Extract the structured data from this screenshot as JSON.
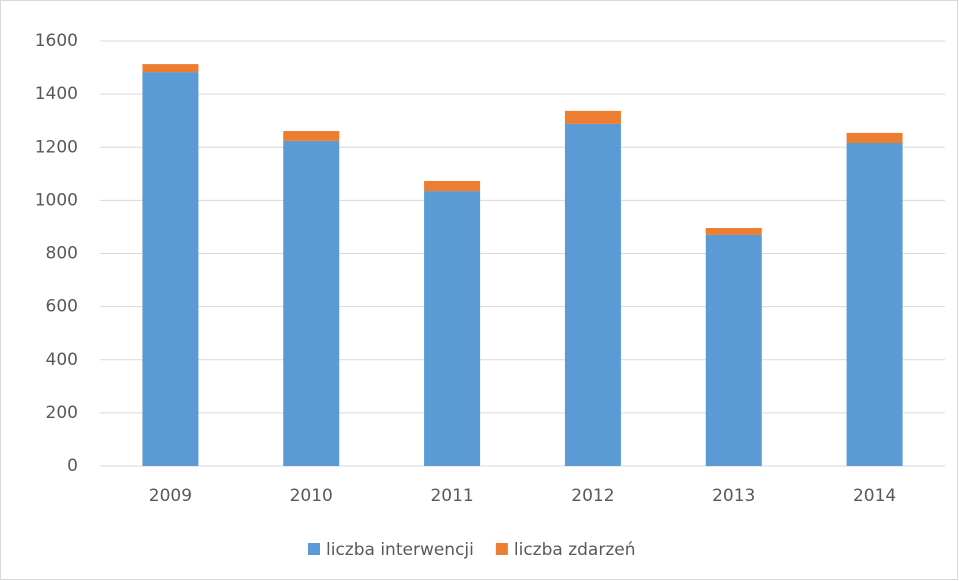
{
  "chart_data": {
    "type": "stacked_bar",
    "categories": [
      "2009",
      "2010",
      "2011",
      "2012",
      "2013",
      "2014"
    ],
    "series": [
      {
        "name": "liczba interwencji",
        "color": "#5b9bd5",
        "values": [
          1483,
          1224,
          1035,
          1288,
          870,
          1216
        ]
      },
      {
        "name": "liczba zdarzeń",
        "color": "#ed7d31",
        "values": [
          30,
          37,
          38,
          49,
          26,
          38
        ]
      }
    ],
    "ylim": [
      0,
      1600
    ],
    "yticks": [
      0,
      200,
      400,
      600,
      800,
      1000,
      1200,
      1400,
      1600
    ],
    "grid": true,
    "legend": "bottom"
  }
}
